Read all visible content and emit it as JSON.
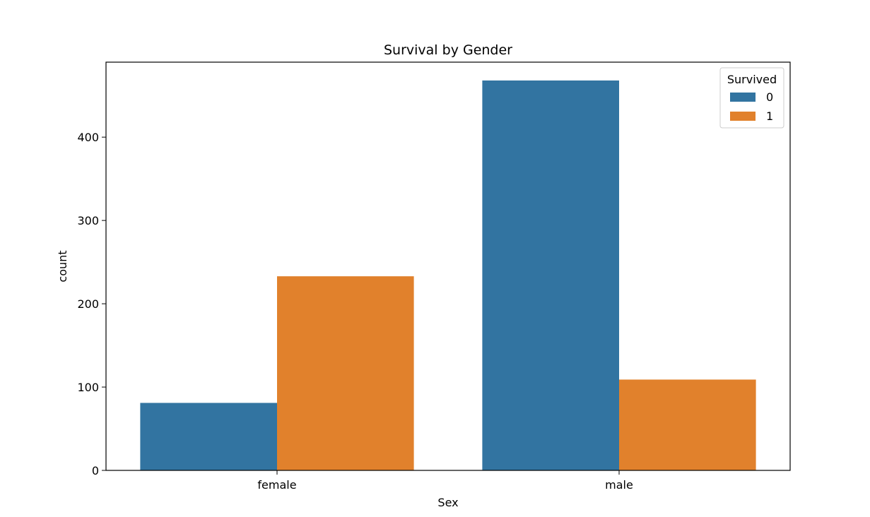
{
  "chart_data": {
    "type": "bar",
    "title": "Survival by Gender",
    "xlabel": "Sex",
    "ylabel": "count",
    "categories": [
      "female",
      "male"
    ],
    "series": [
      {
        "name": "0",
        "values": [
          81,
          468
        ],
        "color": "#3274a1"
      },
      {
        "name": "1",
        "values": [
          233,
          109
        ],
        "color": "#e1812c"
      }
    ],
    "ylim": [
      0,
      490
    ],
    "yticks": [
      0,
      100,
      200,
      300,
      400
    ],
    "legend": {
      "title": "Survived",
      "placement": "upper-right"
    },
    "grid": false
  }
}
